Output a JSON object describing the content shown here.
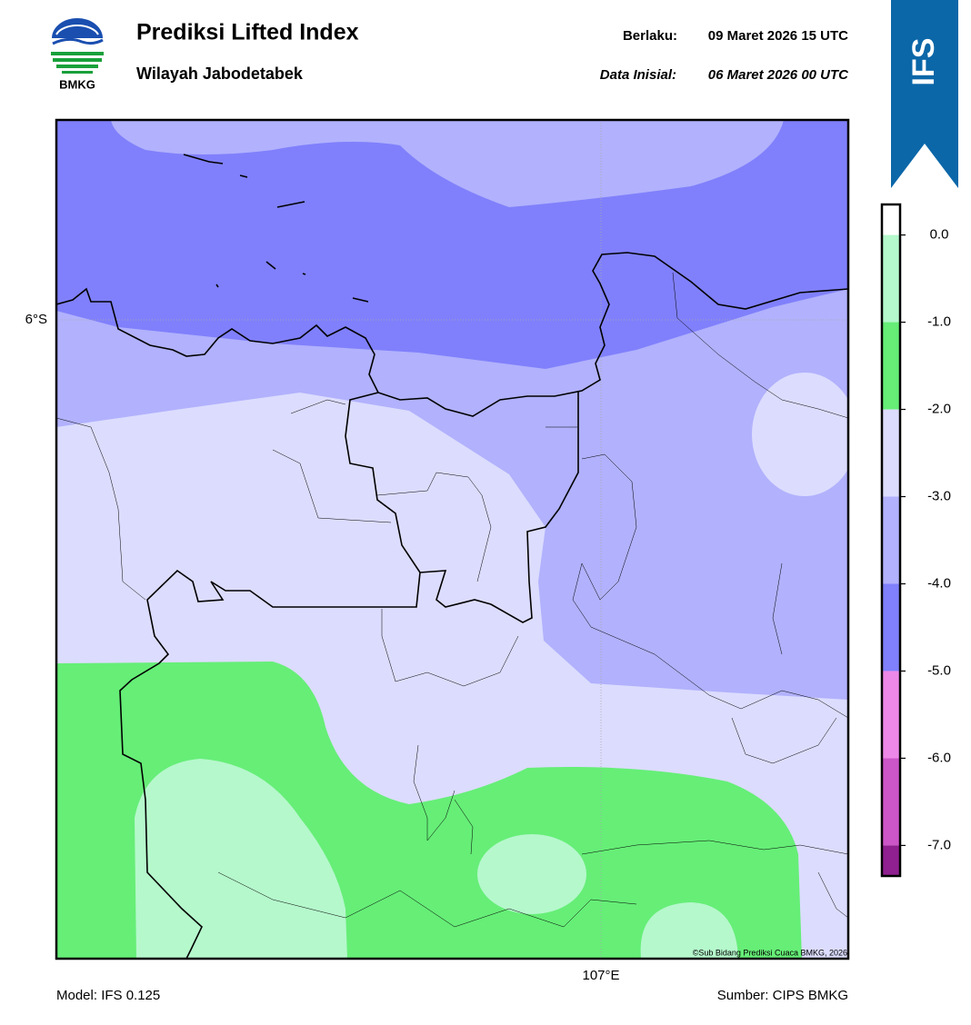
{
  "header": {
    "title": "Prediksi Lifted Index",
    "subtitle": "Wilayah Jabodetabek",
    "valid_label": "Berlaku:",
    "valid_value": "09 Maret 2026 15 UTC",
    "init_label": "Data Inisial:",
    "init_value": "06 Maret 2026 00 UTC"
  },
  "logo_text": "BMKG",
  "badge": "IFS",
  "map": {
    "lat_label": "6°S",
    "lon_label": "107°E",
    "credit": "©Sub Bidang Prediksi Cuaca BMKG, 2026"
  },
  "footer": {
    "model": "Model: IFS 0.125",
    "source": "Sumber: CIPS BMKG"
  },
  "colorbar": {
    "lim": [
      -7.35,
      0.35
    ],
    "ticks": [
      {
        "value": 0,
        "label": "0.0"
      },
      {
        "value": -1,
        "label": "-1.0"
      },
      {
        "value": -2,
        "label": "-2.0"
      },
      {
        "value": -3,
        "label": "-3.0"
      },
      {
        "value": -4,
        "label": "-4.0"
      },
      {
        "value": -5,
        "label": "-5.0"
      },
      {
        "value": -6,
        "label": "-6.0"
      },
      {
        "value": -7,
        "label": "-7.0"
      }
    ],
    "colors": [
      "#ffffff",
      "#b5f8cc",
      "#66ee77",
      "#dcdcfe",
      "#b1b1fd",
      "#8080fc",
      "#ee88e8",
      "#cc55c8",
      "#902090"
    ]
  }
}
